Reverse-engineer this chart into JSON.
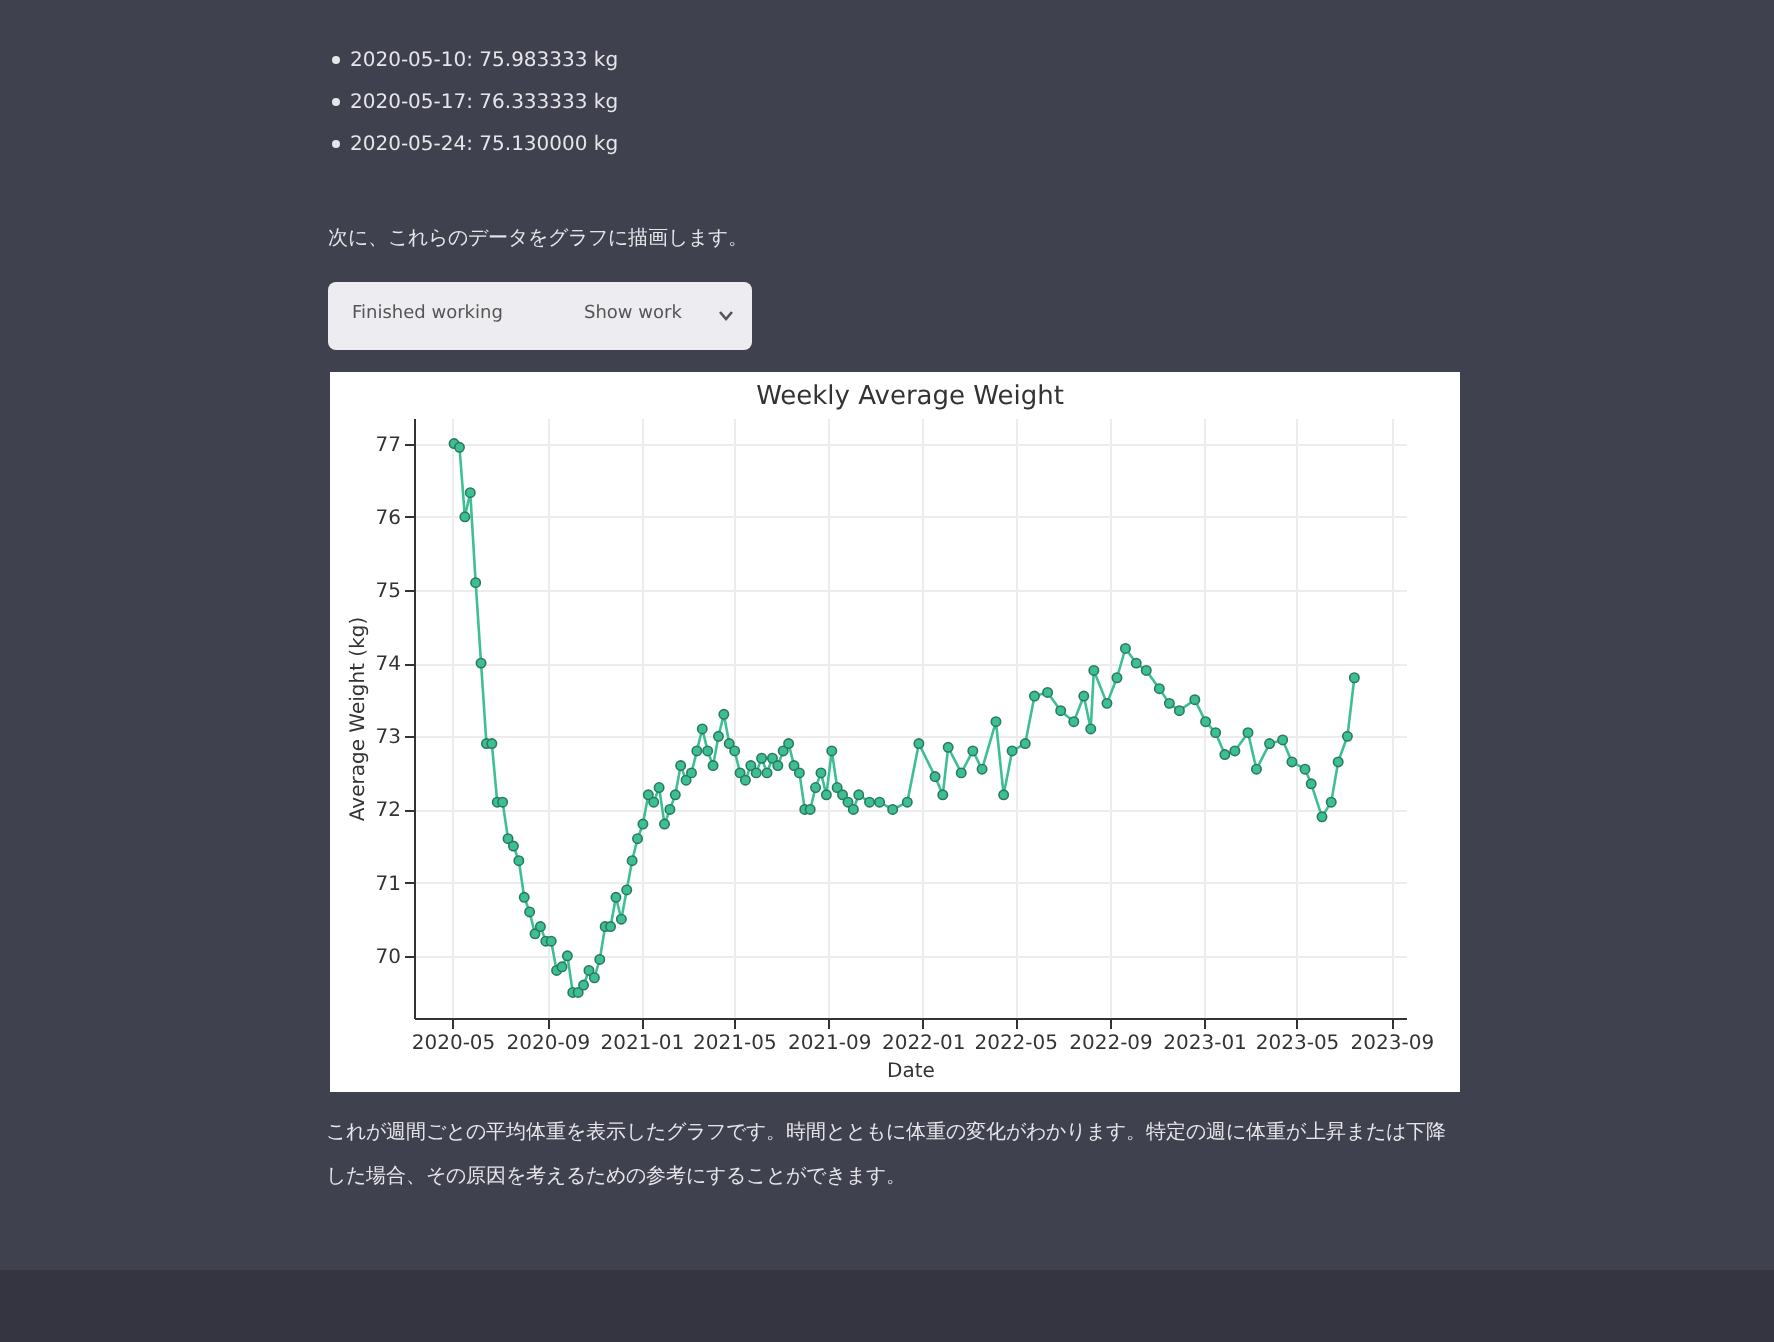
{
  "chart_data": {
    "type": "line",
    "title": "Weekly Average Weight",
    "xlabel": "Date",
    "ylabel": "Average Weight (kg)",
    "annotations": [
      "2020-05-10: 75.983333 kg",
      "2020-05-17: 76.333333 kg",
      "2020-05-24: 75.130000 kg",
      "次に、これらのデータをグラフに描画します。",
      "Finished working",
      "Show work",
      "これが週間ごとの平均体重を表示したグラフです。時間とともに体重の変化がわかります。特定の週に体重が上昇または下降した場合、その原因を考えるための参考にすることができます。"
    ],
    "x": [
      "2020-05-03",
      "2020-05-10",
      "2020-05-17",
      "2020-05-24",
      "2020-05-31",
      "2020-06-07",
      "2020-06-14",
      "2020-06-21",
      "2020-06-28",
      "2020-07-05",
      "2020-07-12",
      "2020-07-19",
      "2020-07-26",
      "2020-08-02",
      "2020-08-09",
      "2020-08-16",
      "2020-08-23",
      "2020-08-30",
      "2020-09-06",
      "2020-09-13",
      "2020-09-20",
      "2020-09-27",
      "2020-10-04",
      "2020-10-11",
      "2020-10-18",
      "2020-10-25",
      "2020-11-01",
      "2020-11-08",
      "2020-11-15",
      "2020-11-22",
      "2020-11-29",
      "2020-12-06",
      "2020-12-13",
      "2020-12-20",
      "2020-12-27",
      "2021-01-03",
      "2021-01-10",
      "2021-01-17",
      "2021-01-24",
      "2021-01-31",
      "2021-02-07",
      "2021-02-14",
      "2021-02-21",
      "2021-02-28",
      "2021-03-07",
      "2021-03-14",
      "2021-03-21",
      "2021-03-28",
      "2021-04-04",
      "2021-04-11",
      "2021-04-18",
      "2021-04-25",
      "2021-05-02",
      "2021-05-09",
      "2021-05-16",
      "2021-05-23",
      "2021-05-30",
      "2021-06-06",
      "2021-06-13",
      "2021-06-20",
      "2021-06-27",
      "2021-07-04",
      "2021-07-11",
      "2021-07-18",
      "2021-07-25",
      "2021-08-01",
      "2021-08-08",
      "2021-08-15",
      "2021-08-22",
      "2021-08-29",
      "2021-09-05",
      "2021-09-12",
      "2021-09-19",
      "2021-09-26",
      "2021-10-03",
      "2021-10-10",
      "2021-10-24",
      "2021-11-06",
      "2021-11-23",
      "2021-12-12",
      "2021-12-27",
      "2022-01-17",
      "2022-01-27",
      "2022-02-03",
      "2022-02-20",
      "2022-03-07",
      "2022-03-19",
      "2022-04-06",
      "2022-04-16",
      "2022-04-27",
      "2022-05-14",
      "2022-05-26",
      "2022-06-12",
      "2022-06-29",
      "2022-07-16",
      "2022-07-29",
      "2022-08-07",
      "2022-08-11",
      "2022-08-28",
      "2022-09-10",
      "2022-09-21",
      "2022-10-05",
      "2022-10-18",
      "2022-11-04",
      "2022-11-17",
      "2022-11-30",
      "2022-12-20",
      "2023-01-03",
      "2023-01-16",
      "2023-01-28",
      "2023-02-10",
      "2023-02-27",
      "2023-03-10",
      "2023-03-27",
      "2023-04-13",
      "2023-04-25",
      "2023-05-12",
      "2023-05-20",
      "2023-06-03",
      "2023-06-15",
      "2023-06-24",
      "2023-07-06",
      "2023-07-15"
    ],
    "series": [
      {
        "color": "#3dbf94",
        "values": [
          77.0,
          76.95,
          76.0,
          76.33,
          75.1,
          74.0,
          72.9,
          72.9,
          72.1,
          72.1,
          71.6,
          71.5,
          71.3,
          70.8,
          70.6,
          70.3,
          70.4,
          70.2,
          70.2,
          69.8,
          69.85,
          70.0,
          69.5,
          69.5,
          69.6,
          69.8,
          69.7,
          69.95,
          70.4,
          70.4,
          70.8,
          70.5,
          70.9,
          71.3,
          71.6,
          71.8,
          72.2,
          72.1,
          72.3,
          71.8,
          72.0,
          72.2,
          72.6,
          72.4,
          72.5,
          72.8,
          73.1,
          72.8,
          72.6,
          73.0,
          73.3,
          72.9,
          72.8,
          72.5,
          72.4,
          72.6,
          72.5,
          72.7,
          72.5,
          72.7,
          72.6,
          72.8,
          72.9,
          72.6,
          72.5,
          72.0,
          72.0,
          72.3,
          72.5,
          72.2,
          72.8,
          72.3,
          72.2,
          72.1,
          72.0,
          72.2,
          72.1,
          72.1,
          72.0,
          72.1,
          72.9,
          72.45,
          72.2,
          72.85,
          72.5,
          72.8,
          72.55,
          73.2,
          72.2,
          72.8,
          72.9,
          73.55,
          73.6,
          73.35,
          73.2,
          73.55,
          73.1,
          73.9,
          73.45,
          73.8,
          74.2,
          74.0,
          73.9,
          73.65,
          73.45,
          73.35,
          73.5,
          73.2,
          73.05,
          72.75,
          72.8,
          73.05,
          72.55,
          72.9,
          72.95,
          72.65,
          72.55,
          72.35,
          71.9,
          72.1,
          72.65,
          73.0,
          73.8
        ]
      }
    ],
    "xlim": [
      "2020-03-12",
      "2023-09-20"
    ],
    "xticks": [
      "2020-05",
      "2020-09",
      "2021-01",
      "2021-05",
      "2021-09",
      "2022-01",
      "2022-05",
      "2022-09",
      "2023-01",
      "2023-05",
      "2023-09"
    ],
    "ylim": [
      69.15,
      77.35
    ],
    "yticks": [
      70,
      71,
      72,
      73,
      74,
      75,
      76,
      77
    ],
    "grid": true,
    "marker": "circle",
    "line_style": "solid"
  }
}
